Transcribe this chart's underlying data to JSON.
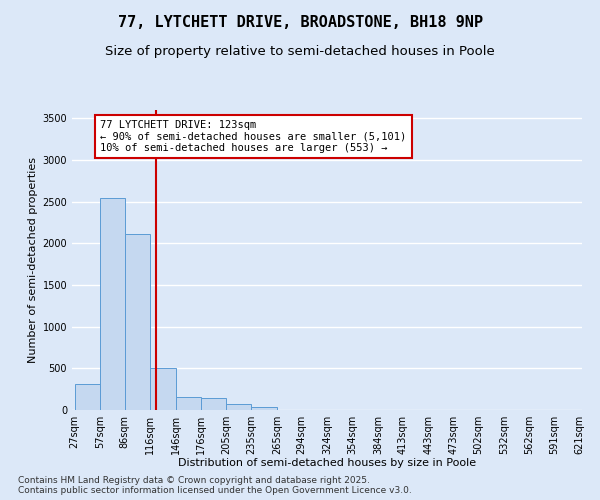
{
  "title_line1": "77, LYTCHETT DRIVE, BROADSTONE, BH18 9NP",
  "title_line2": "Size of property relative to semi-detached houses in Poole",
  "xlabel": "Distribution of semi-detached houses by size in Poole",
  "ylabel": "Number of semi-detached properties",
  "bar_left_edges": [
    27,
    57,
    86,
    116,
    146,
    176,
    205,
    235,
    265,
    294,
    324,
    354,
    384,
    413,
    443,
    473,
    502,
    532,
    562,
    591
  ],
  "bar_widths": [
    30,
    29,
    30,
    30,
    30,
    29,
    30,
    30,
    29,
    30,
    30,
    30,
    29,
    30,
    30,
    29,
    30,
    30,
    29,
    30
  ],
  "bar_heights": [
    310,
    2540,
    2110,
    510,
    155,
    140,
    75,
    40,
    5,
    2,
    1,
    1,
    0,
    0,
    0,
    0,
    0,
    0,
    0,
    0
  ],
  "tick_labels": [
    "27sqm",
    "57sqm",
    "86sqm",
    "116sqm",
    "146sqm",
    "176sqm",
    "205sqm",
    "235sqm",
    "265sqm",
    "294sqm",
    "324sqm",
    "354sqm",
    "384sqm",
    "413sqm",
    "443sqm",
    "473sqm",
    "502sqm",
    "532sqm",
    "562sqm",
    "591sqm",
    "621sqm"
  ],
  "bar_color": "#c5d8f0",
  "bar_edge_color": "#5b9bd5",
  "vline_x": 123,
  "vline_color": "#cc0000",
  "ylim": [
    0,
    3600
  ],
  "yticks": [
    0,
    500,
    1000,
    1500,
    2000,
    2500,
    3000,
    3500
  ],
  "annotation_line1": "77 LYTCHETT DRIVE: 123sqm",
  "annotation_line2": "← 90% of semi-detached houses are smaller (5,101)",
  "annotation_line3": "10% of semi-detached houses are larger (553) →",
  "annotation_box_color": "#cc0000",
  "footer_text": "Contains HM Land Registry data © Crown copyright and database right 2025.\nContains public sector information licensed under the Open Government Licence v3.0.",
  "bg_color": "#dce8f8",
  "plot_bg_color": "#dce8f8",
  "grid_color": "#ffffff",
  "title_fontsize": 11,
  "subtitle_fontsize": 9.5,
  "label_fontsize": 8,
  "tick_fontsize": 7,
  "annot_fontsize": 7.5,
  "footer_fontsize": 6.5
}
